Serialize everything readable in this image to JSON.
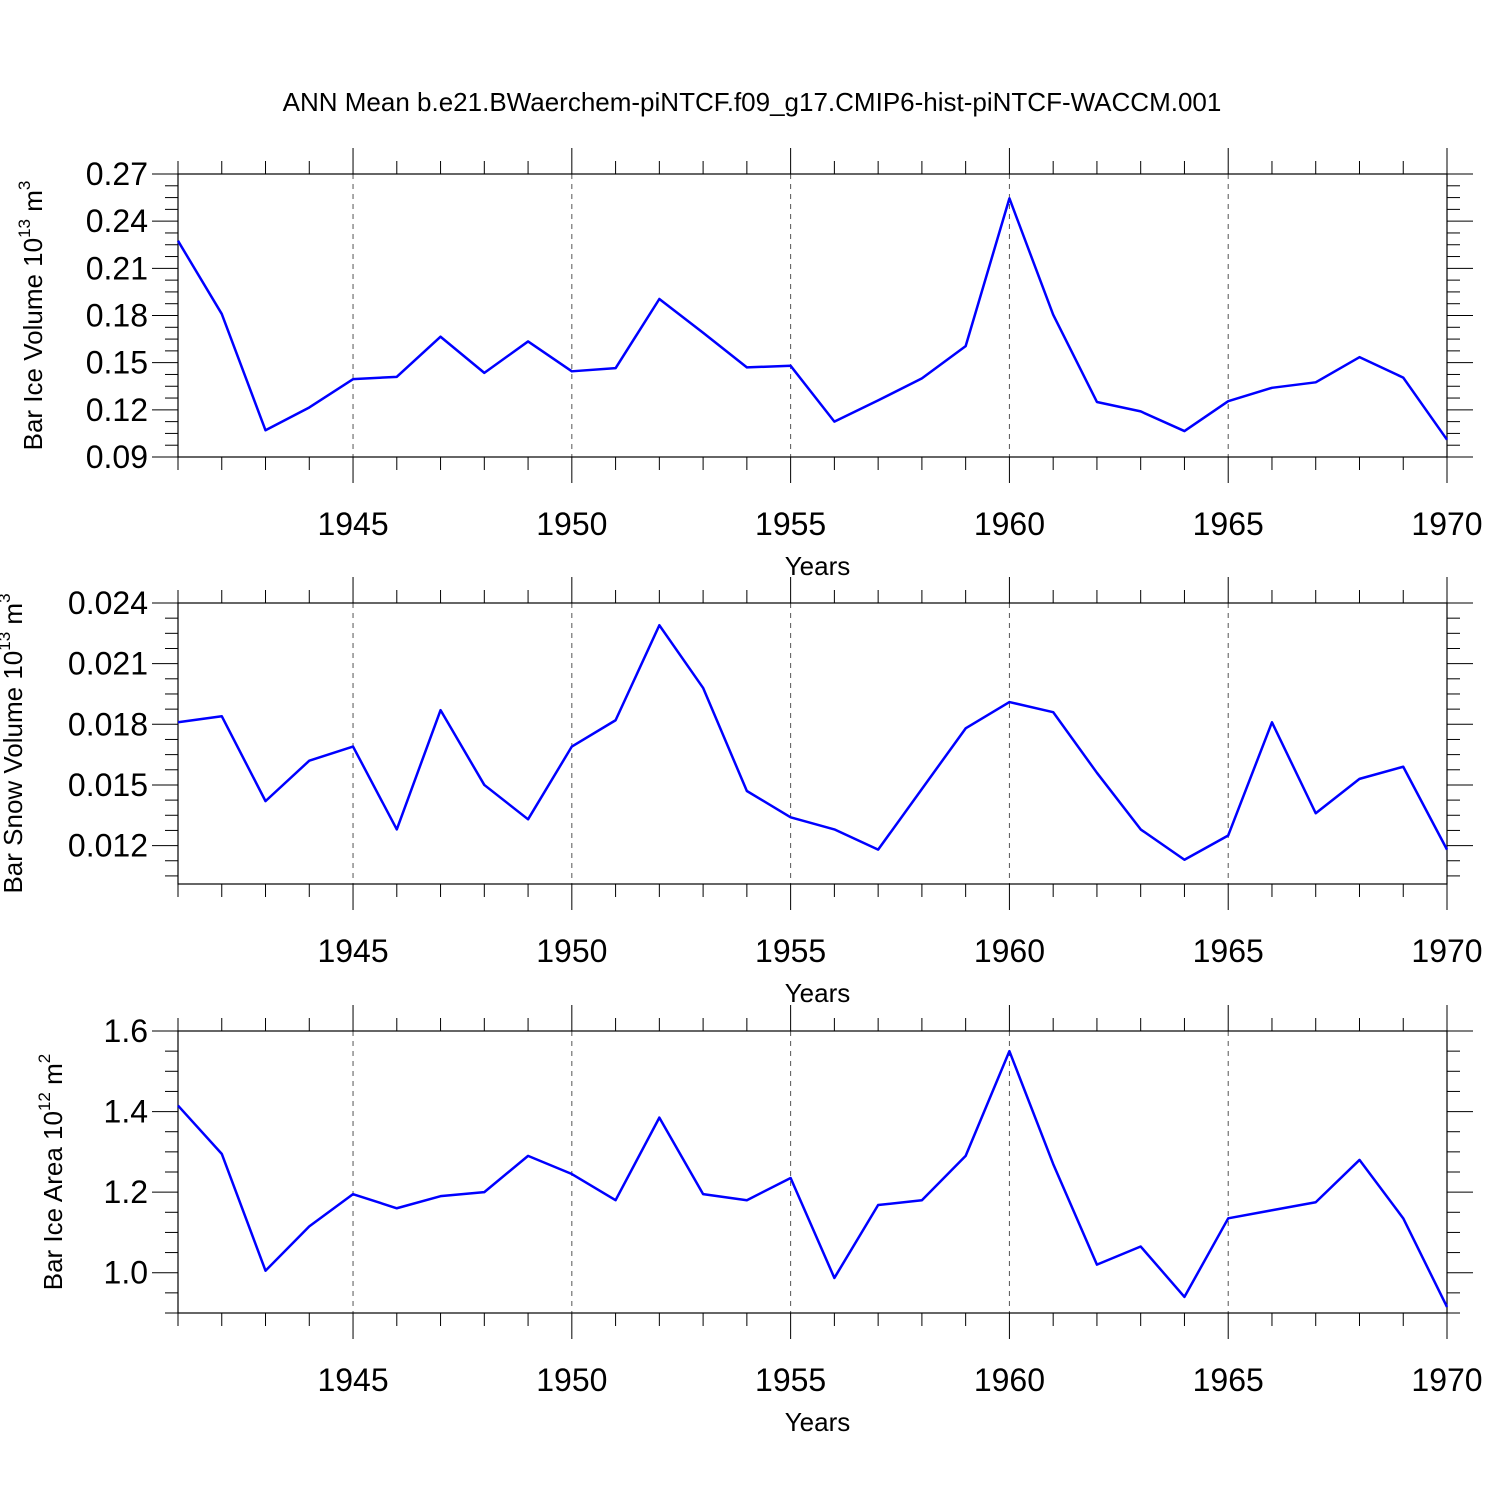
{
  "figure": {
    "title": "ANN Mean b.e21.BWaerchem-piNTCF.f09_g17.CMIP6-hist-piNTCF-WACCM.001"
  },
  "colors": {
    "series": "#0000ff",
    "frame": "#000000",
    "grid": "#555555"
  },
  "chart_data": [
    {
      "type": "line",
      "xlabel": "Years",
      "ylabel": {
        "text": "Bar Ice Volume 10",
        "exp1": "13",
        "unit": " m",
        "exp2": "3"
      },
      "xlim": [
        1941,
        1970
      ],
      "ylim": [
        0.09,
        0.27
      ],
      "xticks": [
        1945,
        1950,
        1955,
        1960,
        1965,
        1970
      ],
      "yticks": [
        0.09,
        0.12,
        0.15,
        0.18,
        0.21,
        0.24,
        0.27
      ],
      "ytick_labels": [
        "0.09",
        "0.12",
        "0.15",
        "0.18",
        "0.21",
        "0.24",
        "0.27"
      ],
      "grid": "dashed vertical at major x ticks",
      "x": [
        1941,
        1942,
        1943,
        1944,
        1945,
        1946,
        1947,
        1948,
        1949,
        1950,
        1951,
        1952,
        1953,
        1954,
        1955,
        1956,
        1957,
        1958,
        1959,
        1960,
        1961,
        1962,
        1963,
        1964,
        1965,
        1966,
        1967,
        1968,
        1969,
        1970
      ],
      "series": [
        {
          "values": [
            0.2275,
            0.181,
            0.107,
            0.1215,
            0.1395,
            0.141,
            0.1665,
            0.1435,
            0.1635,
            0.1445,
            0.1465,
            0.1905,
            0.169,
            0.147,
            0.148,
            0.1125,
            0.126,
            0.14,
            0.1605,
            0.2545,
            0.1805,
            0.125,
            0.119,
            0.1065,
            0.1255,
            0.134,
            0.1375,
            0.1535,
            0.1405,
            0.101
          ]
        }
      ]
    },
    {
      "type": "line",
      "xlabel": "Years",
      "ylabel": {
        "text": "Bar Snow Volume 10",
        "exp1": "13",
        "unit": " m",
        "exp2": "3"
      },
      "xlim": [
        1941,
        1970
      ],
      "ylim": [
        0.0101,
        0.024
      ],
      "xticks": [
        1945,
        1950,
        1955,
        1960,
        1965,
        1970
      ],
      "yticks": [
        0.012,
        0.015,
        0.018,
        0.021,
        0.024
      ],
      "ytick_labels": [
        "0.012",
        "0.015",
        "0.018",
        "0.021",
        "0.024"
      ],
      "grid": "dashed vertical at major x ticks",
      "x": [
        1941,
        1942,
        1943,
        1944,
        1945,
        1946,
        1947,
        1948,
        1949,
        1950,
        1951,
        1952,
        1953,
        1954,
        1955,
        1956,
        1957,
        1958,
        1959,
        1960,
        1961,
        1962,
        1963,
        1964,
        1965,
        1966,
        1967,
        1968,
        1969,
        1970
      ],
      "series": [
        {
          "values": [
            0.0181,
            0.0184,
            0.0142,
            0.0162,
            0.0169,
            0.0128,
            0.0187,
            0.015,
            0.0133,
            0.0169,
            0.0182,
            0.0229,
            0.0198,
            0.0147,
            0.0134,
            0.0128,
            0.0118,
            0.0148,
            0.0178,
            0.0191,
            0.0186,
            0.0156,
            0.0128,
            0.0113,
            0.0125,
            0.0181,
            0.0136,
            0.0153,
            0.0159,
            0.0118
          ]
        }
      ]
    },
    {
      "type": "line",
      "xlabel": "Years",
      "ylabel": {
        "text": "Bar Ice Area 10",
        "exp1": "12",
        "unit": " m",
        "exp2": "2"
      },
      "xlim": [
        1941,
        1970
      ],
      "ylim": [
        0.9,
        1.6
      ],
      "xticks": [
        1945,
        1950,
        1955,
        1960,
        1965,
        1970
      ],
      "yticks": [
        1.0,
        1.2,
        1.4,
        1.6
      ],
      "ytick_labels": [
        "1.0",
        "1.2",
        "1.4",
        "1.6"
      ],
      "grid": "dashed vertical at major x ticks",
      "x": [
        1941,
        1942,
        1943,
        1944,
        1945,
        1946,
        1947,
        1948,
        1949,
        1950,
        1951,
        1952,
        1953,
        1954,
        1955,
        1956,
        1957,
        1958,
        1959,
        1960,
        1961,
        1962,
        1963,
        1964,
        1965,
        1966,
        1967,
        1968,
        1969,
        1970
      ],
      "series": [
        {
          "values": [
            1.415,
            1.295,
            1.005,
            1.115,
            1.195,
            1.16,
            1.19,
            1.2,
            1.29,
            1.245,
            1.18,
            1.385,
            1.195,
            1.18,
            1.235,
            0.987,
            1.168,
            1.18,
            1.29,
            1.55,
            1.27,
            1.02,
            1.065,
            0.94,
            1.135,
            1.155,
            1.175,
            1.28,
            1.135,
            0.915
          ]
        }
      ]
    }
  ]
}
